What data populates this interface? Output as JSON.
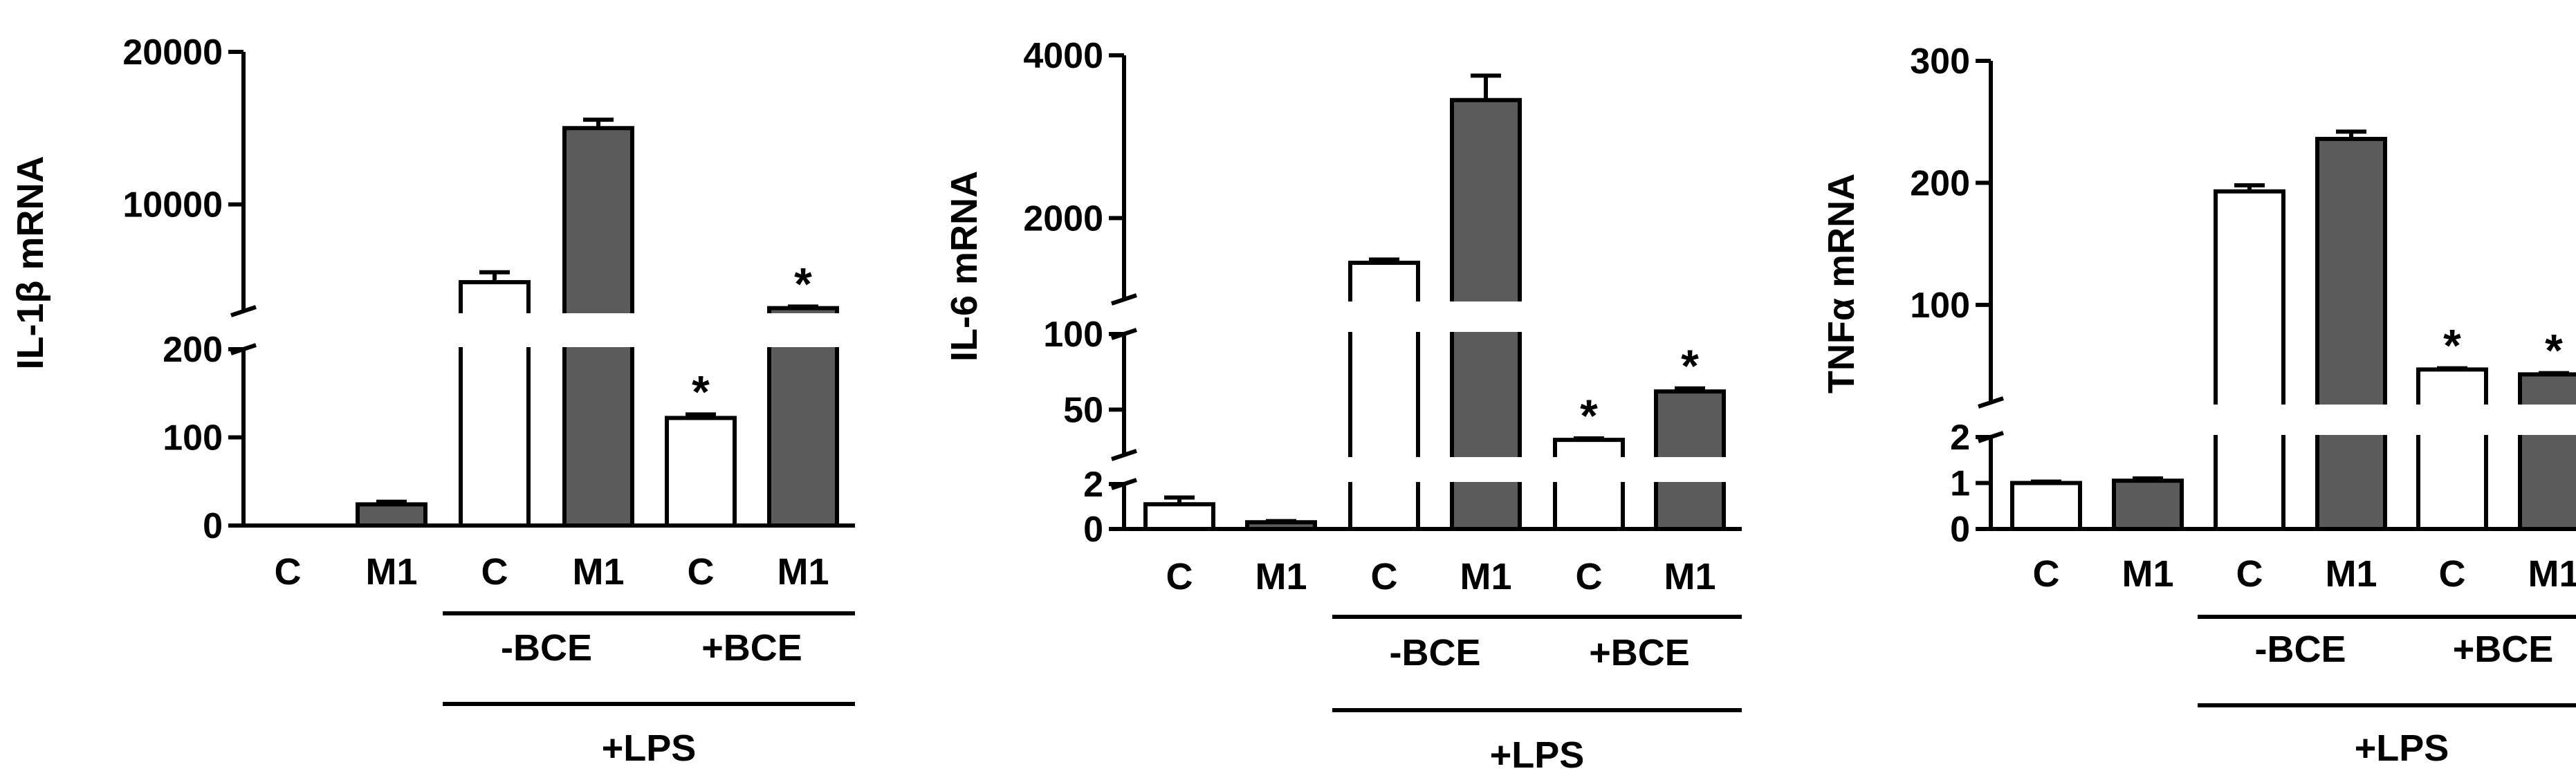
{
  "chart_data": [
    {
      "type": "bar",
      "categories": [
        "C",
        "M1",
        "C",
        "M1",
        "C",
        "M1"
      ],
      "values": [
        0,
        24,
        4900,
        15000,
        122,
        3200
      ],
      "errors": [
        0,
        3,
        650,
        550,
        4,
        100
      ],
      "significant": [
        false,
        false,
        false,
        false,
        true,
        true
      ],
      "fill": [
        "white",
        "gray",
        "white",
        "gray",
        "white",
        "gray"
      ],
      "ylabel": "IL-1β mRNA",
      "ylim": [
        0,
        20000
      ],
      "axis_break": {
        "low": [
          0,
          200
        ],
        "high": [
          3000,
          20000
        ]
      },
      "yticks_low": [
        "0",
        "100",
        "200"
      ],
      "yticks_high": [
        "10000",
        "20000"
      ],
      "groups": [
        {
          "label": "-BCE",
          "from": 2,
          "to": 3
        },
        {
          "label": "+BCE",
          "from": 4,
          "to": 5
        }
      ],
      "outer_group": {
        "label": "+LPS",
        "from": 2,
        "to": 5
      },
      "significance_marker": "*"
    },
    {
      "type": "bar",
      "categories": [
        "C",
        "M1",
        "C",
        "M1",
        "C",
        "M1"
      ],
      "values": [
        1.1,
        0.3,
        1450,
        3450,
        30,
        62
      ],
      "errors": [
        0.3,
        0.05,
        40,
        300,
        1,
        2
      ],
      "significant": [
        false,
        false,
        false,
        false,
        true,
        true
      ],
      "fill": [
        "white",
        "gray",
        "white",
        "gray",
        "white",
        "gray"
      ],
      "ylabel": "IL-6 mRNA",
      "ylim": [
        0,
        4000
      ],
      "axis_break": {
        "low": [
          0,
          2
        ],
        "mid": [
          20,
          100
        ],
        "high": [
          1000,
          4000
        ]
      },
      "yticks_low": [
        "0",
        "2"
      ],
      "yticks_mid": [
        "50",
        "100"
      ],
      "yticks_high": [
        "2000",
        "4000"
      ],
      "groups": [
        {
          "label": "-BCE",
          "from": 2,
          "to": 3
        },
        {
          "label": "+BCE",
          "from": 4,
          "to": 5
        }
      ],
      "outer_group": {
        "label": "+LPS",
        "from": 2,
        "to": 5
      },
      "significance_marker": "*"
    },
    {
      "type": "bar",
      "categories": [
        "C",
        "M1",
        "C",
        "M1",
        "C",
        "M1"
      ],
      "values": [
        1,
        1.05,
        193,
        236,
        47,
        43
      ],
      "errors": [
        0.03,
        0.05,
        5,
        6,
        1,
        1
      ],
      "significant": [
        false,
        false,
        false,
        false,
        true,
        true
      ],
      "fill": [
        "white",
        "gray",
        "white",
        "gray",
        "white",
        "gray"
      ],
      "ylabel": "TNFα mRNA",
      "ylim": [
        0,
        300
      ],
      "axis_break": {
        "low": [
          0,
          2
        ],
        "high": [
          20,
          300
        ]
      },
      "yticks_low": [
        "0",
        "1",
        "2"
      ],
      "yticks_high": [
        "100",
        "200",
        "300"
      ],
      "groups": [
        {
          "label": "-BCE",
          "from": 2,
          "to": 3
        },
        {
          "label": "+BCE",
          "from": 4,
          "to": 5
        }
      ],
      "outer_group": {
        "label": "+LPS",
        "from": 2,
        "to": 5
      },
      "significance_marker": "*"
    }
  ],
  "colors": {
    "gray_fill": "#5b5b5b",
    "white_fill": "#ffffff",
    "stroke": "#000000"
  }
}
